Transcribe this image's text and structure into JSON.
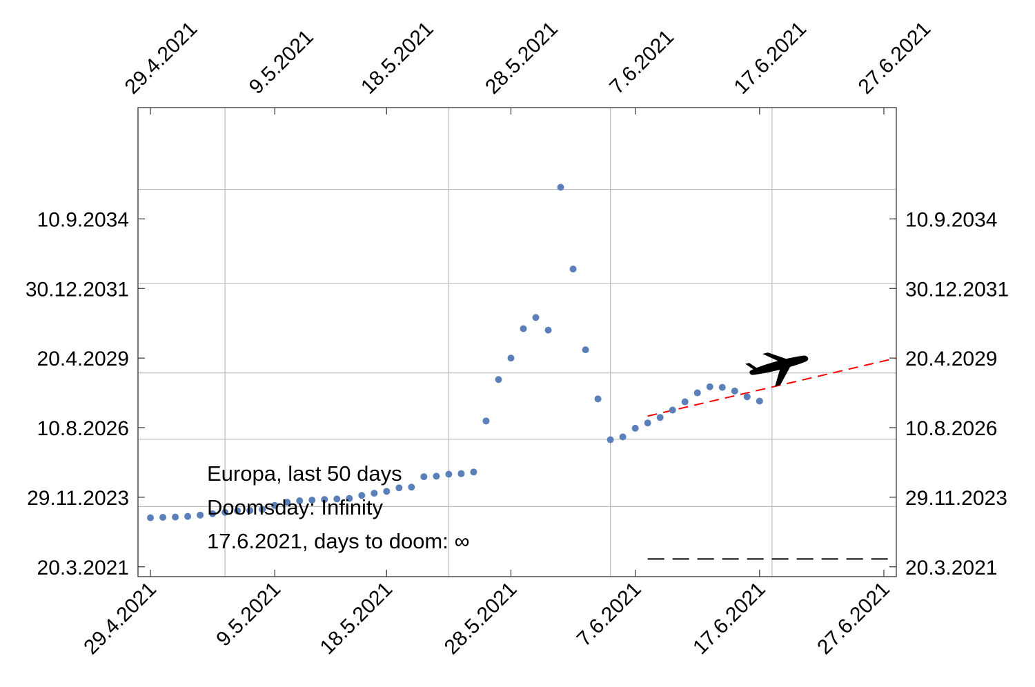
{
  "chart_data": {
    "type": "scatter",
    "x_axis": {
      "type": "date",
      "range": [
        "28.4.2021",
        "28.6.2021"
      ],
      "tick_labels": [
        "29.4.2021",
        "9.5.2021",
        "18.5.2021",
        "28.5.2021",
        "7.6.2021",
        "17.6.2021",
        "27.6.2021"
      ],
      "tick_values": [
        "29.4.2021",
        "9.5.2021",
        "18.5.2021",
        "28.5.2021",
        "7.6.2021",
        "17.6.2021",
        "27.6.2021"
      ],
      "gridlines": [
        "5.5.2021",
        "23.5.2021",
        "5.6.2021",
        "18.6.2021"
      ]
    },
    "y_axis": {
      "type": "date",
      "range": [
        "1.11.2020",
        "1.1.2039"
      ],
      "tick_labels": [
        "20.3.2021",
        "29.11.2023",
        "10.8.2026",
        "20.4.2029",
        "30.12.2031",
        "10.9.2034"
      ],
      "tick_values": [
        "20.3.2021",
        "29.11.2023",
        "10.8.2026",
        "20.4.2029",
        "30.12.2031",
        "10.9.2034"
      ],
      "gridlines": [
        "20.7.2023",
        "27.2.2026",
        "22.9.2028",
        "7.3.2032",
        "1.11.2035"
      ]
    },
    "grid": true,
    "series": [
      {
        "marker": "dot",
        "color": "#5b7fb8",
        "points": [
          {
            "x": "29.4.2021",
            "y": "12.2.2023"
          },
          {
            "x": "30.4.2021",
            "y": "18.2.2023"
          },
          {
            "x": "1.5.2021",
            "y": "22.2.2023"
          },
          {
            "x": "2.5.2021",
            "y": "3.3.2023"
          },
          {
            "x": "3.5.2021",
            "y": "21.3.2023"
          },
          {
            "x": "4.5.2021",
            "y": "10.4.2023"
          },
          {
            "x": "5.5.2021",
            "y": "30.4.2023"
          },
          {
            "x": "6.5.2021",
            "y": "20.5.2023"
          },
          {
            "x": "7.5.2021",
            "y": "26.5.2023"
          },
          {
            "x": "8.5.2021",
            "y": "10.6.2023"
          },
          {
            "x": "9.5.2021",
            "y": "5.8.2023"
          },
          {
            "x": "10.5.2021",
            "y": "20.9.2023"
          },
          {
            "x": "11.5.2021",
            "y": "10.10.2023"
          },
          {
            "x": "12.5.2021",
            "y": "20.10.2023"
          },
          {
            "x": "13.5.2021",
            "y": "28.10.2023"
          },
          {
            "x": "14.5.2021",
            "y": "5.11.2023"
          },
          {
            "x": "15.5.2021",
            "y": "12.11.2023"
          },
          {
            "x": "16.5.2021",
            "y": "25.12.2023"
          },
          {
            "x": "17.5.2021",
            "y": "25.1.2024"
          },
          {
            "x": "18.5.2021",
            "y": "20.2.2024"
          },
          {
            "x": "19.5.2021",
            "y": "10.4.2024"
          },
          {
            "x": "20.5.2021",
            "y": "20.4.2024"
          },
          {
            "x": "21.5.2021",
            "y": "15.9.2024"
          },
          {
            "x": "22.5.2021",
            "y": "22.9.2024"
          },
          {
            "x": "23.5.2021",
            "y": "20.10.2024"
          },
          {
            "x": "24.5.2021",
            "y": "28.10.2024"
          },
          {
            "x": "25.5.2021",
            "y": "20.11.2024"
          },
          {
            "x": "26.5.2021",
            "y": "12.11.2026"
          },
          {
            "x": "27.5.2021",
            "y": "20.6.2028"
          },
          {
            "x": "28.5.2021",
            "y": "20.4.2029"
          },
          {
            "x": "29.5.2021",
            "y": "10.6.2030"
          },
          {
            "x": "30.5.2021",
            "y": "15.11.2030"
          },
          {
            "x": "31.5.2021",
            "y": "20.5.2030"
          },
          {
            "x": "1.6.2021",
            "y": "1.12.2035"
          },
          {
            "x": "2.6.2021",
            "y": "1.10.2032"
          },
          {
            "x": "3.6.2021",
            "y": "15.8.2029"
          },
          {
            "x": "4.6.2021",
            "y": "20.9.2027"
          },
          {
            "x": "5.6.2021",
            "y": "20.2.2026"
          },
          {
            "x": "6.6.2021",
            "y": "1.4.2026"
          },
          {
            "x": "7.6.2021",
            "y": "1.8.2026"
          },
          {
            "x": "8.6.2021",
            "y": "15.10.2026"
          },
          {
            "x": "9.6.2021",
            "y": "1.1.2027"
          },
          {
            "x": "10.6.2021",
            "y": "15.4.2027"
          },
          {
            "x": "11.6.2021",
            "y": "10.8.2027"
          },
          {
            "x": "12.6.2021",
            "y": "15.12.2027"
          },
          {
            "x": "13.6.2021",
            "y": "10.3.2028"
          },
          {
            "x": "14.6.2021",
            "y": "1.3.2028"
          },
          {
            "x": "15.6.2021",
            "y": "10.1.2028"
          },
          {
            "x": "16.6.2021",
            "y": "20.10.2027"
          },
          {
            "x": "17.6.2021",
            "y": "20.8.2027"
          }
        ]
      }
    ],
    "trend_line": {
      "style": "dashed",
      "color": "#ff0000",
      "points": [
        {
          "x": "8.6.2021",
          "y": "20.1.2027"
        },
        {
          "x": "28.6.2021",
          "y": "20.4.2029"
        }
      ]
    },
    "reference_line": {
      "style": "dashed",
      "color": "#000000",
      "points": [
        {
          "x": "8.6.2021",
          "y": "9.7.2021"
        },
        {
          "x": "28.6.2021",
          "y": "9.7.2021"
        }
      ]
    },
    "annotations": [
      "Europa, last 50 days",
      "Doomsday: Infinity",
      "17.6.2021, days to doom: ∞"
    ]
  }
}
